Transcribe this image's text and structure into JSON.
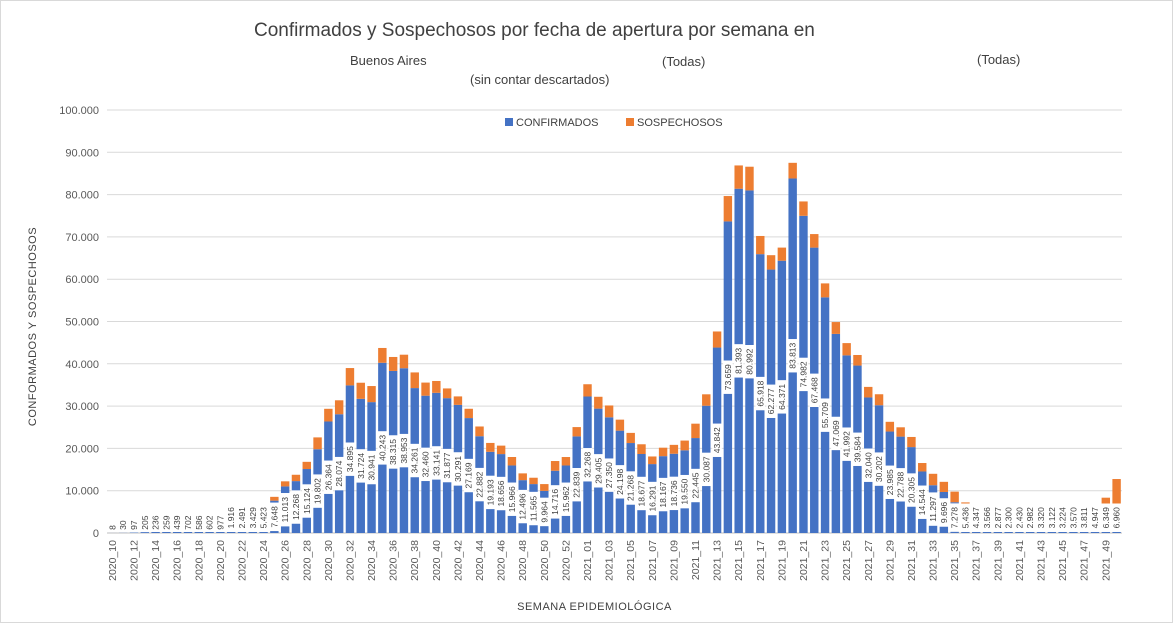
{
  "chart_data": {
    "type": "bar",
    "stacked": true,
    "title": "Confirmados y Sospechosos por fecha de apertura por semana en",
    "subtitle_location": "Buenos Aires",
    "subtitle_filter_1": "(Todas)",
    "subtitle_filter_2": "(Todas)",
    "subtitle_note": "(sin contar descartados)",
    "xlabel": "SEMANA EPIDEMIOLÓGICA",
    "ylabel": "CONFORMADOS Y SOSPECHOSOS",
    "ylim": [
      0,
      100000
    ],
    "ytick_labels": [
      "0",
      "10.000",
      "20.000",
      "30.000",
      "40.000",
      "50.000",
      "60.000",
      "70.000",
      "80.000",
      "90.000",
      "100.000"
    ],
    "legend_position": "top",
    "series_colors": {
      "confirmados": "#4472c4",
      "sospechosos": "#ed7d31"
    },
    "categories": [
      "2020_10",
      "2020_11",
      "2020_12",
      "2020_13",
      "2020_14",
      "2020_15",
      "2020_16",
      "2020_17",
      "2020_18",
      "2020_19",
      "2020_20",
      "2020_21",
      "2020_22",
      "2020_23",
      "2020_24",
      "2020_25",
      "2020_26",
      "2020_27",
      "2020_28",
      "2020_29",
      "2020_30",
      "2020_31",
      "2020_32",
      "2020_33",
      "2020_34",
      "2020_35",
      "2020_36",
      "2020_37",
      "2020_38",
      "2020_39",
      "2020_40",
      "2020_41",
      "2020_42",
      "2020_43",
      "2020_44",
      "2020_45",
      "2020_46",
      "2020_47",
      "2020_48",
      "2020_49",
      "2020_50",
      "2020_51",
      "2020_52",
      "2020_53",
      "2021_01",
      "2021_02",
      "2021_03",
      "2021_04",
      "2021_05",
      "2021_06",
      "2021_07",
      "2021_08",
      "2021_09",
      "2021_10",
      "2021_11",
      "2021_12",
      "2021_13",
      "2021_14",
      "2021_15",
      "2021_16",
      "2021_17",
      "2021_18",
      "2021_19",
      "2021_20",
      "2021_21",
      "2021_22",
      "2021_23",
      "2021_24",
      "2021_25",
      "2021_26",
      "2021_27",
      "2021_28",
      "2021_29",
      "2021_30",
      "2021_31",
      "2021_32",
      "2021_33",
      "2021_34",
      "2021_35",
      "2021_36",
      "2021_37",
      "2021_38",
      "2021_39",
      "2021_40",
      "2021_41",
      "2021_42",
      "2021_43",
      "2021_44",
      "2021_45",
      "2021_46",
      "2021_47",
      "2021_48",
      "2021_49",
      "2021_50"
    ],
    "series": [
      {
        "name": "CONFIRMADOS",
        "values": [
          8,
          30,
          97,
          205,
          236,
          259,
          439,
          702,
          586,
          602,
          977,
          1916,
          2491,
          3429,
          5423,
          7648,
          11013,
          12268,
          15124,
          19802,
          26364,
          28074,
          34895,
          31724,
          30941,
          40243,
          38315,
          38953,
          34261,
          32460,
          33141,
          31877,
          30291,
          27169,
          22882,
          19193,
          18656,
          15966,
          12496,
          11565,
          9964,
          14716,
          15962,
          22839,
          32268,
          29405,
          27350,
          24198,
          21268,
          18677,
          16291,
          18167,
          18736,
          19550,
          22445,
          30087,
          43842,
          73659,
          81393,
          80992,
          65918,
          62277,
          64371,
          83813,
          74982,
          67468,
          55709,
          47069,
          41992,
          39584,
          32040,
          30202,
          23985,
          22788,
          20305,
          14544,
          11297,
          9696,
          7278,
          5436,
          4347,
          3566,
          2877,
          2300,
          2430,
          2982,
          3320,
          3122,
          3224,
          3570,
          3811,
          4947,
          6349,
          6960
        ]
      },
      {
        "name": "SOSPECHOSOS",
        "values": [
          0,
          0,
          0,
          0,
          0,
          0,
          0,
          0,
          0,
          0,
          0,
          50,
          120,
          250,
          700,
          900,
          1200,
          1500,
          1700,
          2800,
          3000,
          3300,
          4100,
          3800,
          3800,
          3500,
          3300,
          3200,
          3700,
          3100,
          2800,
          2300,
          2000,
          2200,
          2300,
          2100,
          2000,
          2000,
          1600,
          1500,
          1600,
          2300,
          2000,
          2200,
          2900,
          2800,
          2800,
          2600,
          2400,
          2300,
          1800,
          2000,
          2100,
          2300,
          3400,
          2700,
          3800,
          6000,
          5500,
          5600,
          4300,
          3400,
          3100,
          3700,
          3400,
          3200,
          3300,
          2800,
          2900,
          2500,
          2500,
          2600,
          2300,
          2200,
          2400,
          2000,
          2700,
          2400,
          2500,
          1800,
          1400,
          1100,
          700,
          500,
          500,
          700,
          900,
          800,
          1000,
          1800,
          2200,
          1900,
          2000,
          5800
        ]
      }
    ],
    "value_labels": [
      "8",
      "30",
      "97",
      "205",
      "236",
      "259",
      "439",
      "702",
      "586",
      "602",
      "977",
      "1.916",
      "2.491",
      "3.429",
      "5.423",
      "7.648",
      "11.013",
      "12.268",
      "15.124",
      "19.802",
      "26.364",
      "28.074",
      "34.895",
      "31.724",
      "30.941",
      "40.243",
      "38.315",
      "38.953",
      "34.261",
      "32.460",
      "33.141",
      "31.877",
      "30.291",
      "27.169",
      "22.882",
      "19.193",
      "18.656",
      "15.966",
      "12.496",
      "11.565",
      "9.964",
      "14.716",
      "15.962",
      "22.839",
      "32.268",
      "29.405",
      "27.350",
      "24.198",
      "21.268",
      "18.677",
      "16.291",
      "18.167",
      "18.736",
      "19.550",
      "22.445",
      "30.087",
      "43.842",
      "73.659",
      "81.393",
      "80.992",
      "65.918",
      "62.277",
      "64.371",
      "83.813",
      "74.982",
      "67.468",
      "55.709",
      "47.069",
      "41.992",
      "39.584",
      "32.040",
      "30.202",
      "23.985",
      "22.788",
      "20.305",
      "14.544",
      "11.297",
      "9.696",
      "7.278",
      "5.436",
      "4.347",
      "3.566",
      "2.877",
      "2.300",
      "2.430",
      "2.982",
      "3.320",
      "3.122",
      "3.224",
      "3.570",
      "3.811",
      "4.947",
      "6.349",
      "6.960"
    ]
  }
}
